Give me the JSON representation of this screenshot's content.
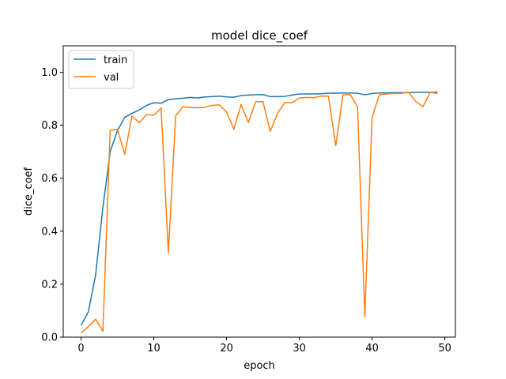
{
  "chart_data": {
    "type": "line",
    "title": "model dice_coef",
    "xlabel": "epoch",
    "ylabel": "dice_coef",
    "xlim": [
      -2.45,
      51.45
    ],
    "ylim": [
      0.0,
      1.1
    ],
    "xticks": [
      0,
      10,
      20,
      30,
      40,
      50
    ],
    "yticks": [
      0.0,
      0.2,
      0.4,
      0.6,
      0.8,
      1.0
    ],
    "xtick_labels": [
      "0",
      "10",
      "20",
      "30",
      "40",
      "50"
    ],
    "ytick_labels": [
      "0.0",
      "0.2",
      "0.4",
      "0.6",
      "0.8",
      "1.0"
    ],
    "grid": false,
    "legend_position": "top-left",
    "x": [
      0,
      1,
      2,
      3,
      4,
      5,
      6,
      7,
      8,
      9,
      10,
      11,
      12,
      13,
      14,
      15,
      16,
      17,
      18,
      19,
      20,
      21,
      22,
      23,
      24,
      25,
      26,
      27,
      28,
      29,
      30,
      31,
      32,
      33,
      34,
      35,
      36,
      37,
      38,
      39,
      40,
      41,
      42,
      43,
      44,
      45,
      46,
      47,
      48,
      49
    ],
    "series": [
      {
        "name": "train",
        "color": "#1f77b4",
        "values": [
          0.045,
          0.095,
          0.235,
          0.49,
          0.7,
          0.78,
          0.83,
          0.845,
          0.858,
          0.875,
          0.885,
          0.883,
          0.897,
          0.9,
          0.902,
          0.905,
          0.903,
          0.907,
          0.908,
          0.91,
          0.907,
          0.906,
          0.912,
          0.914,
          0.915,
          0.916,
          0.908,
          0.908,
          0.909,
          0.914,
          0.918,
          0.918,
          0.918,
          0.919,
          0.921,
          0.921,
          0.922,
          0.922,
          0.921,
          0.915,
          0.92,
          0.922,
          0.922,
          0.923,
          0.923,
          0.923,
          0.924,
          0.925,
          0.925,
          0.925
        ]
      },
      {
        "name": "val",
        "color": "#ff7f0e",
        "values": [
          0.015,
          0.04,
          0.068,
          0.022,
          0.78,
          0.785,
          0.69,
          0.835,
          0.81,
          0.84,
          0.838,
          0.865,
          0.318,
          0.835,
          0.87,
          0.867,
          0.866,
          0.868,
          0.875,
          0.877,
          0.85,
          0.785,
          0.878,
          0.81,
          0.889,
          0.889,
          0.777,
          0.845,
          0.886,
          0.885,
          0.903,
          0.905,
          0.904,
          0.91,
          0.91,
          0.723,
          0.915,
          0.916,
          0.87,
          0.077,
          0.83,
          0.915,
          0.918,
          0.92,
          0.92,
          0.925,
          0.89,
          0.87,
          0.925,
          0.92
        ]
      }
    ]
  }
}
